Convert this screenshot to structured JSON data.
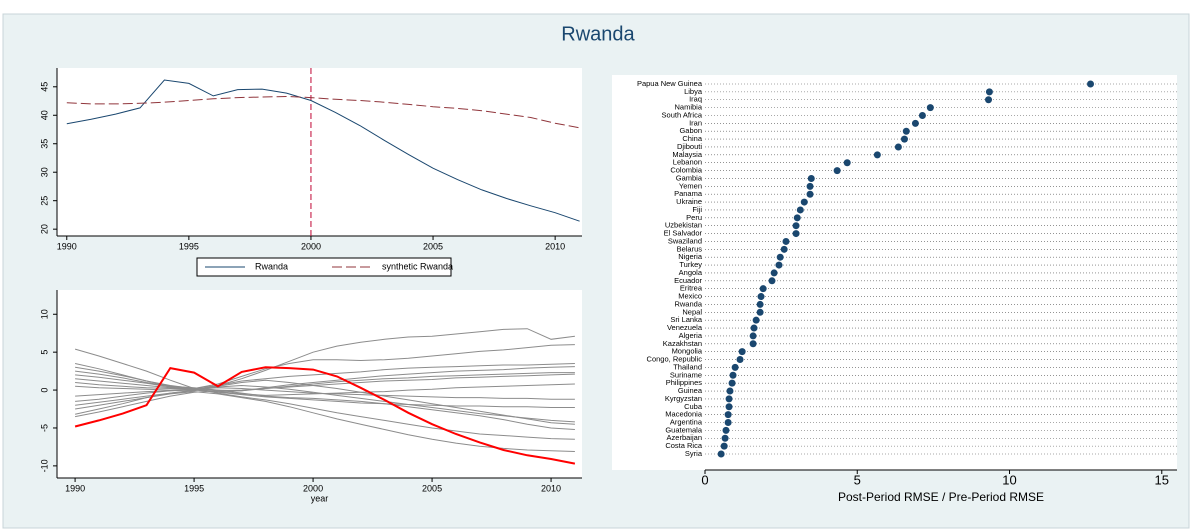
{
  "title": "Rwanda",
  "chart_data": [
    {
      "type": "line",
      "x": [
        1990,
        1991,
        1992,
        1993,
        1994,
        1995,
        1996,
        1997,
        1998,
        1999,
        2000,
        2001,
        2002,
        2003,
        2004,
        2005,
        2006,
        2007,
        2008,
        2009,
        2010,
        2011
      ],
      "series": [
        {
          "name": "Rwanda",
          "color": "#1a476f",
          "values": [
            38.5,
            39.3,
            40.2,
            41.3,
            46.2,
            45.6,
            43.4,
            44.5,
            44.6,
            43.9,
            42.6,
            40.5,
            38.2,
            35.6,
            33.1,
            30.7,
            28.7,
            26.9,
            25.4,
            24.1,
            22.9,
            21.4
          ]
        },
        {
          "name": "synthetic Rwanda",
          "color": "#90353b",
          "line_style": "dashed",
          "values": [
            42.2,
            42.0,
            42.0,
            42.1,
            42.3,
            42.6,
            42.9,
            43.1,
            43.2,
            43.3,
            43.1,
            42.8,
            42.6,
            42.3,
            41.9,
            41.5,
            41.2,
            40.8,
            40.2,
            39.6,
            38.6,
            37.8
          ]
        }
      ],
      "xlim": [
        1989.6,
        2011.1
      ],
      "xticks": [
        1990,
        1995,
        2000,
        2005,
        2010
      ],
      "ylim": [
        18.8,
        48.3
      ],
      "yticks": [
        20,
        25,
        30,
        35,
        40,
        45
      ],
      "vline": 2000,
      "vline_color": "#c10534",
      "legend": "bottom"
    },
    {
      "type": "line",
      "xlabel": "year",
      "x": [
        1990,
        1991,
        1992,
        1993,
        1994,
        1995,
        1996,
        1997,
        1998,
        1999,
        2000,
        2001,
        2002,
        2003,
        2004,
        2005,
        2006,
        2007,
        2008,
        2009,
        2010,
        2011
      ],
      "series": [
        {
          "color": "#8c8c8c",
          "values": [
            5.4,
            4.5,
            3.5,
            2.5,
            1.3,
            0.2,
            0.6,
            1.5,
            2.6,
            3.8,
            5.0,
            5.8,
            6.3,
            6.7,
            7.0,
            7.1,
            7.4,
            7.7,
            8.0,
            8.1,
            6.7,
            7.1
          ]
        },
        {
          "color": "#8c8c8c",
          "values": [
            3.5,
            2.8,
            2.0,
            1.2,
            0.6,
            0.2,
            0.8,
            1.8,
            2.8,
            3.5,
            4.0,
            4.0,
            3.9,
            4.0,
            4.2,
            4.5,
            4.8,
            5.1,
            5.3,
            5.6,
            5.9,
            6.0
          ]
        },
        {
          "color": "#8c8c8c",
          "values": [
            -3.2,
            -2.5,
            -1.8,
            -1.0,
            -0.4,
            0.0,
            0.6,
            1.2,
            1.5,
            1.8,
            2.0,
            2.2,
            2.4,
            2.7,
            2.9,
            3.0,
            3.1,
            3.2,
            3.3,
            3.3,
            3.4,
            3.5
          ]
        },
        {
          "color": "#8c8c8c",
          "values": [
            1.5,
            1.2,
            0.9,
            0.6,
            0.3,
            0.1,
            0.0,
            -0.1,
            0.2,
            0.4,
            0.6,
            0.8,
            1.0,
            1.2,
            1.3,
            1.4,
            1.6,
            1.7,
            1.8,
            1.9,
            2.0,
            2.1
          ]
        },
        {
          "color": "#8c8c8c",
          "values": [
            -1.5,
            -1.2,
            -0.8,
            -0.4,
            -0.1,
            0.1,
            -0.3,
            -0.6,
            -0.9,
            -1.1,
            -1.3,
            -1.5,
            -1.7,
            -1.8,
            -1.9,
            -2.0,
            -2.1,
            -2.1,
            -2.2,
            -2.2,
            -2.3,
            -2.3
          ]
        },
        {
          "color": "#8c8c8c",
          "values": [
            2.0,
            1.7,
            1.3,
            0.9,
            0.4,
            0.2,
            -0.4,
            -0.9,
            -1.3,
            -1.8,
            -2.4,
            -3.0,
            -3.5,
            -4.0,
            -4.5,
            -5.0,
            -5.4,
            -5.8,
            -6.0,
            -6.2,
            -6.4,
            -6.5
          ]
        },
        {
          "color": "#8c8c8c",
          "values": [
            -2.5,
            -2.0,
            -1.5,
            -1.0,
            -0.5,
            -0.2,
            -0.5,
            -1.0,
            -1.5,
            -2.2,
            -3.0,
            -3.8,
            -4.5,
            -5.2,
            -5.9,
            -6.5,
            -7.0,
            -7.4,
            -7.7,
            -7.9,
            -8.0,
            -8.1
          ]
        },
        {
          "color": "#8c8c8c",
          "values": [
            0.5,
            0.3,
            0.2,
            0.1,
            0.0,
            0.1,
            0.3,
            0.2,
            0.0,
            -0.2,
            -0.4,
            -0.5,
            -0.6,
            -0.7,
            -0.8,
            -0.9,
            -1.0,
            -1.0,
            -1.1,
            -1.1,
            -1.2,
            -1.2
          ]
        },
        {
          "color": "#8c8c8c",
          "values": [
            3.0,
            2.5,
            1.9,
            1.2,
            0.5,
            0.0,
            -0.2,
            -0.1,
            0.3,
            0.7,
            1.0,
            1.3,
            1.6,
            1.9,
            2.1,
            2.3,
            2.5,
            2.6,
            2.7,
            2.9,
            3.0,
            3.1
          ]
        },
        {
          "color": "#8c8c8c",
          "values": [
            -0.8,
            -0.6,
            -0.4,
            -0.2,
            -0.1,
            0.0,
            0.4,
            0.6,
            0.4,
            0.1,
            -0.3,
            -0.7,
            -1.1,
            -1.5,
            -1.9,
            -2.3,
            -2.7,
            -3.1,
            -3.4,
            -3.7,
            -4.0,
            -4.2
          ]
        },
        {
          "color": "#8c8c8c",
          "values": [
            1.0,
            0.7,
            0.5,
            0.3,
            0.2,
            0.1,
            -0.2,
            -0.5,
            -0.7,
            -0.6,
            -0.5,
            -0.4,
            -0.3,
            -0.2,
            0.0,
            0.1,
            0.3,
            0.4,
            0.5,
            0.6,
            0.7,
            0.8
          ]
        },
        {
          "color": "#8c8c8c",
          "values": [
            -3.5,
            -2.9,
            -2.2,
            -1.5,
            -0.8,
            -0.3,
            -0.1,
            0.0,
            0.2,
            0.5,
            0.8,
            1.1,
            1.3,
            1.5,
            1.6,
            1.8,
            1.9,
            2.0,
            2.1,
            2.2,
            2.3,
            2.3
          ]
        },
        {
          "color": "#8c8c8c",
          "values": [
            2.5,
            2.1,
            1.6,
            1.0,
            0.5,
            0.3,
            0.0,
            -0.4,
            -0.8,
            -1.0,
            -1.1,
            -1.3,
            -1.5,
            -1.8,
            -2.2,
            -2.6,
            -3.0,
            -3.4,
            -3.9,
            -4.5,
            -5.0,
            -5.2
          ]
        },
        {
          "color": "#8c8c8c",
          "values": [
            -2.0,
            -1.6,
            -1.2,
            -0.8,
            -0.4,
            -0.1,
            0.5,
            1.0,
            1.3,
            1.0,
            0.6,
            0.2,
            -0.3,
            -0.8,
            -1.3,
            -1.8,
            -2.3,
            -2.8,
            -3.3,
            -3.8,
            -4.3,
            -4.5
          ]
        },
        {
          "color": "#ff0000",
          "linewidth": 2,
          "values": [
            -4.8,
            -4.0,
            -3.1,
            -2.0,
            2.9,
            2.3,
            0.5,
            2.4,
            3.0,
            2.9,
            2.7,
            1.8,
            0.3,
            -1.3,
            -3.0,
            -4.5,
            -5.8,
            -6.9,
            -7.9,
            -8.6,
            -9.1,
            -9.7
          ]
        }
      ],
      "xlim": [
        1989.24,
        2011.3
      ],
      "xticks": [
        1990,
        1995,
        2000,
        2005,
        2010
      ],
      "ylim": [
        -11.6,
        13.2
      ],
      "yticks": [
        -10,
        -5,
        0,
        5,
        10
      ]
    },
    {
      "type": "dot",
      "xlabel": "Post-Period RMSE / Pre-Period RMSE",
      "color": "#1a476f",
      "categories": [
        "Papua New Guinea",
        "Libya",
        "Iraq",
        "Namibia",
        "South Africa",
        "Iran",
        "Gabon",
        "China",
        "Djibouti",
        "Malaysia",
        "Lebanon",
        "Colombia",
        "Gambia",
        "Yemen",
        "Panama",
        "Ukraine",
        "Fiji",
        "Peru",
        "Uzbekistan",
        "El Salvador",
        "Swaziland",
        "Belarus",
        "Nigeria",
        "Turkey",
        "Angola",
        "Ecuador",
        "Eritrea",
        "Mexico",
        "Rwanda",
        "Nepal",
        "Sri Lanka",
        "Venezuela",
        "Algeria",
        "Kazakhstan",
        "Mongolia",
        "Congo, Republic",
        "Thailand",
        "Suriname",
        "Philippines",
        "Guinea",
        "Kyrgyzstan",
        "Cuba",
        "Macedonia",
        "Argentina",
        "Guatemala",
        "Azerbaijan",
        "Costa Rica",
        "Syria"
      ],
      "values": [
        12.66,
        9.34,
        9.31,
        7.4,
        7.14,
        6.91,
        6.61,
        6.55,
        6.35,
        5.66,
        4.67,
        4.34,
        3.49,
        3.45,
        3.45,
        3.26,
        3.13,
        3.03,
        2.99,
        2.99,
        2.66,
        2.6,
        2.47,
        2.43,
        2.27,
        2.2,
        1.91,
        1.84,
        1.81,
        1.81,
        1.68,
        1.61,
        1.58,
        1.58,
        1.22,
        1.15,
        0.99,
        0.92,
        0.89,
        0.82,
        0.79,
        0.79,
        0.76,
        0.76,
        0.69,
        0.66,
        0.63,
        0.53
      ],
      "xlim": [
        0,
        15.5
      ],
      "xticks": [
        0,
        5,
        10,
        15
      ]
    }
  ]
}
